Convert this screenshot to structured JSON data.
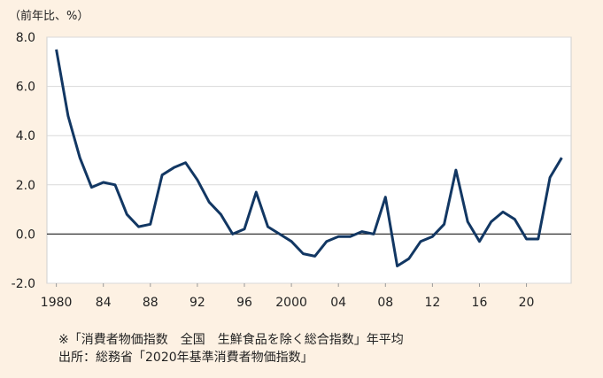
{
  "chart_data": {
    "type": "line",
    "unit_label": "（前年比、%）",
    "x": [
      1980,
      1981,
      1982,
      1983,
      1984,
      1985,
      1986,
      1987,
      1988,
      1989,
      1990,
      1991,
      1992,
      1993,
      1994,
      1995,
      1996,
      1997,
      1998,
      1999,
      2000,
      2001,
      2002,
      2003,
      2004,
      2005,
      2006,
      2007,
      2008,
      2009,
      2010,
      2011,
      2012,
      2013,
      2014,
      2015,
      2016,
      2017,
      2018,
      2019,
      2020,
      2021,
      2022,
      2023
    ],
    "series": [
      {
        "values": [
          7.5,
          4.8,
          3.1,
          1.9,
          2.1,
          2.0,
          0.8,
          0.3,
          0.4,
          2.4,
          2.7,
          2.9,
          2.2,
          1.3,
          0.8,
          0.0,
          0.2,
          1.7,
          0.3,
          0.0,
          -0.3,
          -0.8,
          -0.9,
          -0.3,
          -0.1,
          -0.1,
          0.1,
          0.0,
          1.5,
          -1.3,
          -1.0,
          -0.3,
          -0.1,
          0.4,
          2.6,
          0.5,
          -0.3,
          0.5,
          0.9,
          0.6,
          -0.2,
          -0.2,
          2.3,
          3.1
        ]
      }
    ],
    "x_ticks": [
      "1980",
      "84",
      "88",
      "92",
      "96",
      "2000",
      "04",
      "08",
      "12",
      "16",
      "20"
    ],
    "x_tick_years": [
      1980,
      1984,
      1988,
      1992,
      1996,
      2000,
      2004,
      2008,
      2012,
      2016,
      2020
    ],
    "y_ticks": [
      "8.0",
      "6.0",
      "4.0",
      "2.0",
      "0.0",
      "-2.0"
    ],
    "y_tick_values": [
      8,
      6,
      4,
      2,
      0,
      -2
    ],
    "ylim": [
      -2,
      8
    ],
    "xlim": [
      1979.2,
      2023.8
    ],
    "grid": "horizontal",
    "line_color": "#123763",
    "zero_line_color": "#333333"
  },
  "notes": {
    "line1": "※「消費者物価指数　全国　生鮮食品を除く総合指数」年平均",
    "line2": "出所：総務省「2020年基準消費者物価指数」"
  }
}
